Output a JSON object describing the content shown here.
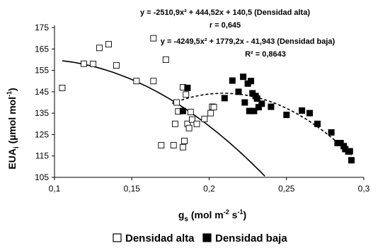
{
  "chart_data": {
    "type": "scatter",
    "xlabel": {
      "base": "g",
      "sub": "s",
      "unit": " (mol m",
      "exp1": "-2",
      "mid": " s",
      "exp2": "-1",
      "close": ")"
    },
    "ylabel": {
      "base": "EUA",
      "sub": "i",
      "unit": " (µmol mol",
      "exp": "-1",
      "close": ")"
    },
    "xlim": [
      0.1,
      0.3
    ],
    "ylim": [
      105,
      175
    ],
    "xticks": [
      0.1,
      0.15,
      0.2,
      0.25,
      0.3
    ],
    "xtick_labels": [
      "0,1",
      "0,15",
      "0,2",
      "0,25",
      "0,3"
    ],
    "yticks": [
      105,
      115,
      125,
      135,
      145,
      155,
      165,
      175
    ],
    "ytick_labels": [
      "105",
      "115",
      "125",
      "135",
      "145",
      "155",
      "165",
      "175"
    ],
    "grid": false,
    "legend_placement": "bottom-center",
    "series": [
      {
        "name": "Densidad alta",
        "marker": "open-square",
        "color": "#000000",
        "points": [
          [
            0.105,
            146.8
          ],
          [
            0.119,
            158.1
          ],
          [
            0.125,
            158.0
          ],
          [
            0.129,
            165.5
          ],
          [
            0.135,
            167.2
          ],
          [
            0.14,
            157.3
          ],
          [
            0.153,
            150.0
          ],
          [
            0.164,
            170.0
          ],
          [
            0.164,
            150.0
          ],
          [
            0.169,
            120.0
          ],
          [
            0.172,
            160.0
          ],
          [
            0.177,
            120.0
          ],
          [
            0.178,
            130.0
          ],
          [
            0.179,
            140.0
          ],
          [
            0.18,
            135.8
          ],
          [
            0.183,
            147.1
          ],
          [
            0.183,
            119.1
          ],
          [
            0.184,
            122.0
          ],
          [
            0.185,
            143.7
          ],
          [
            0.186,
            130.0
          ],
          [
            0.187,
            128.0
          ],
          [
            0.188,
            135.5
          ],
          [
            0.189,
            132.0
          ],
          [
            0.192,
            130.0
          ],
          [
            0.197,
            132.3
          ],
          [
            0.201,
            135.0
          ],
          [
            0.202,
            138.0
          ],
          [
            0.203,
            137.8
          ]
        ],
        "fit": {
          "label": "y = -2510,9x² + 444,52x + 140,5 (Densidad alta)",
          "stat": "r = 0,645",
          "a": -2510.9,
          "b": 444.52,
          "c": 140.5,
          "x_from": 0.105,
          "x_to": 0.236,
          "style": "solid"
        }
      },
      {
        "name": "Densidad baja",
        "marker": "filled-square",
        "color": "#000000",
        "points": [
          [
            0.183,
            136.0
          ],
          [
            0.186,
            146.8
          ],
          [
            0.21,
            142.0
          ],
          [
            0.215,
            150.2
          ],
          [
            0.219,
            145.0
          ],
          [
            0.222,
            152.0
          ],
          [
            0.223,
            140.0
          ],
          [
            0.225,
            148.8
          ],
          [
            0.226,
            136.0
          ],
          [
            0.227,
            150.0
          ],
          [
            0.228,
            144.3
          ],
          [
            0.229,
            136.0
          ],
          [
            0.23,
            143.0
          ],
          [
            0.231,
            141.8
          ],
          [
            0.232,
            137.8
          ],
          [
            0.234,
            139.4
          ],
          [
            0.24,
            138.0
          ],
          [
            0.25,
            134.2
          ],
          [
            0.26,
            136.2
          ],
          [
            0.265,
            135.0
          ],
          [
            0.27,
            130.0
          ],
          [
            0.279,
            126.0
          ],
          [
            0.283,
            121.0
          ],
          [
            0.285,
            121.0
          ],
          [
            0.287,
            119.6
          ],
          [
            0.288,
            118.2
          ],
          [
            0.29,
            117.1
          ],
          [
            0.291,
            117.2
          ],
          [
            0.292,
            113.0
          ]
        ],
        "fit": {
          "label": "y = -4249,5x² + 1779,2x - 41,943 (Densidad baja)",
          "stat": "R² = 0,8643",
          "a": -4249.5,
          "b": 1779.2,
          "c": -41.943,
          "x_from": 0.176,
          "x_to": 0.292,
          "style": "dashed"
        }
      }
    ]
  }
}
